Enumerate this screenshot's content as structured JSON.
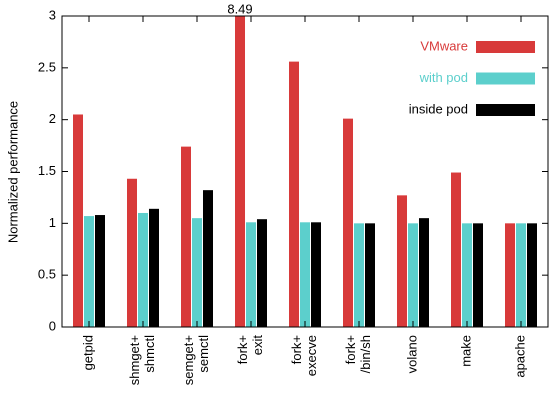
{
  "chart_data": {
    "type": "bar",
    "ylabel": "Normalized performance",
    "categories": [
      [
        "getpid"
      ],
      [
        "shmget+",
        "shmctl"
      ],
      [
        "semget+",
        "semctl"
      ],
      [
        "fork+",
        "exit"
      ],
      [
        "fork+",
        "execve"
      ],
      [
        "fork+",
        "/bin/sh"
      ],
      [
        "volano"
      ],
      [
        "make"
      ],
      [
        "apache"
      ]
    ],
    "series": [
      {
        "name": "VMware",
        "color": "#d83a3a",
        "values": [
          2.05,
          1.43,
          1.74,
          8.49,
          2.56,
          2.01,
          1.27,
          1.49,
          1.0
        ],
        "value_labels": [
          null,
          null,
          null,
          "8.49",
          null,
          null,
          null,
          null,
          null
        ]
      },
      {
        "name": "with pod",
        "color": "#5ccfcc",
        "values": [
          1.07,
          1.1,
          1.05,
          1.01,
          1.01,
          1.0,
          1.0,
          1.0,
          1.0
        ]
      },
      {
        "name": "inside pod",
        "color": "#000000",
        "values": [
          1.08,
          1.14,
          1.32,
          1.04,
          1.01,
          1.0,
          1.05,
          1.0,
          1.0
        ]
      }
    ],
    "ylim": [
      0,
      3
    ],
    "yticks": [
      0,
      0.5,
      1,
      1.5,
      2,
      2.5,
      3
    ],
    "legend": "top-right"
  }
}
